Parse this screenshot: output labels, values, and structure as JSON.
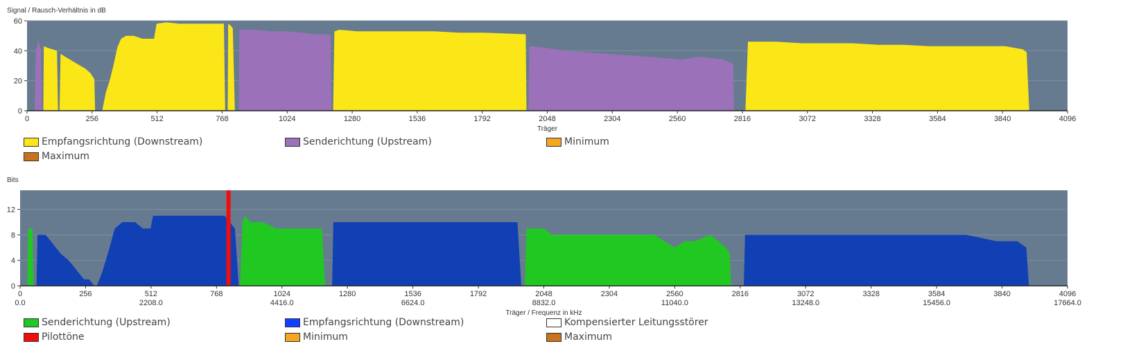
{
  "chart_data": [
    {
      "type": "area",
      "ylabel": "Signal / Rausch-Verhältnis in dB",
      "xlabel": "Träger",
      "xlim": [
        0,
        4096
      ],
      "ylim": [
        0,
        60
      ],
      "xticks": [
        "0",
        "256",
        "512",
        "768",
        "1024",
        "1280",
        "1536",
        "1792",
        "2048",
        "2304",
        "2560",
        "2816",
        "3072",
        "3328",
        "3584",
        "3840",
        "4096"
      ],
      "yticks": [
        "0",
        "20",
        "40",
        "60"
      ],
      "grid": true,
      "background": "#667b8f",
      "series": [
        {
          "name": "Empfangsrichtung (Downstream)",
          "color": "#fbe718",
          "segments": [
            [
              [
                64,
                0
              ],
              [
                66,
                43
              ],
              [
                80,
                42
              ],
              [
                100,
                41
              ],
              [
                118,
                40
              ],
              [
                122,
                0
              ]
            ],
            [
              [
                128,
                0
              ],
              [
                132,
                38
              ],
              [
                150,
                36
              ],
              [
                170,
                34
              ],
              [
                190,
                32
              ],
              [
                210,
                30
              ],
              [
                230,
                28
              ],
              [
                250,
                25
              ],
              [
                265,
                21
              ],
              [
                268,
                0
              ]
            ],
            [
              [
                296,
                0
              ],
              [
                310,
                12
              ],
              [
                325,
                20
              ],
              [
                340,
                30
              ],
              [
                355,
                42
              ],
              [
                370,
                48
              ],
              [
                390,
                50
              ],
              [
                420,
                50
              ],
              [
                455,
                48
              ],
              [
                500,
                48
              ],
              [
                510,
                58
              ],
              [
                550,
                59
              ],
              [
                600,
                58
              ],
              [
                650,
                58
              ],
              [
                700,
                58
              ],
              [
                750,
                58
              ],
              [
                775,
                58
              ],
              [
                780,
                0
              ]
            ],
            [
              [
                790,
                0
              ],
              [
                792,
                58
              ],
              [
                800,
                57
              ],
              [
                810,
                55
              ],
              [
                818,
                0
              ]
            ],
            [
              [
                1205,
                0
              ],
              [
                1210,
                53
              ],
              [
                1230,
                54
              ],
              [
                1300,
                53
              ],
              [
                1400,
                53
              ],
              [
                1500,
                53
              ],
              [
                1600,
                53
              ],
              [
                1700,
                52
              ],
              [
                1800,
                52
              ],
              [
                1963,
                51
              ],
              [
                1966,
                0
              ]
            ],
            [
              [
                2828,
                0
              ],
              [
                2838,
                46
              ],
              [
                2950,
                46
              ],
              [
                3050,
                45
              ],
              [
                3150,
                45
              ],
              [
                3250,
                45
              ],
              [
                3350,
                44
              ],
              [
                3450,
                44
              ],
              [
                3550,
                43
              ],
              [
                3650,
                43
              ],
              [
                3750,
                43
              ],
              [
                3850,
                43
              ],
              [
                3920,
                41
              ],
              [
                3935,
                39
              ],
              [
                3945,
                0
              ]
            ]
          ]
        },
        {
          "name": "Senderichtung (Upstream)",
          "color": "#9b72ba",
          "segments": [
            [
              [
                30,
                0
              ],
              [
                35,
                40
              ],
              [
                45,
                47
              ],
              [
                55,
                40
              ],
              [
                58,
                0
              ]
            ],
            [
              [
                834,
                0
              ],
              [
                836,
                54
              ],
              [
                900,
                54
              ],
              [
                960,
                53
              ],
              [
                1020,
                53
              ],
              [
                1080,
                52
              ],
              [
                1130,
                51
              ],
              [
                1180,
                51
              ],
              [
                1195,
                50
              ],
              [
                1198,
                0
              ]
            ],
            [
              [
                1974,
                0
              ],
              [
                1978,
                43
              ],
              [
                2040,
                42
              ],
              [
                2120,
                40
              ],
              [
                2200,
                39
              ],
              [
                2280,
                38
              ],
              [
                2360,
                37
              ],
              [
                2440,
                36
              ],
              [
                2520,
                35
              ],
              [
                2580,
                34
              ],
              [
                2640,
                36
              ],
              [
                2700,
                35
              ],
              [
                2740,
                34
              ],
              [
                2770,
                32
              ],
              [
                2780,
                31
              ],
              [
                2783,
                0
              ]
            ]
          ]
        },
        {
          "name": "Minimum",
          "color": "#f5a623",
          "segments": []
        },
        {
          "name": "Maximum",
          "color": "#c97320",
          "segments": []
        }
      ]
    },
    {
      "type": "area",
      "ylabel": "Bits",
      "xlabel": "Träger / Frequenz in kHz",
      "xlim": [
        0,
        4096
      ],
      "ylim": [
        0,
        15
      ],
      "xticks": [
        "0",
        "256",
        "512",
        "768",
        "1024",
        "1280",
        "1536",
        "1792",
        "2048",
        "2304",
        "2560",
        "2816",
        "3072",
        "3328",
        "3584",
        "3840",
        "4096"
      ],
      "xticks_freq": [
        "0.0",
        "2208.0",
        "4416.0",
        "6624.0",
        "8832.0",
        "11040.0",
        "13248.0",
        "15456.0",
        "17664.0"
      ],
      "yticks": [
        "0",
        "4",
        "8",
        "12"
      ],
      "grid": true,
      "background": "#667b8f",
      "series": [
        {
          "name": "Senderichtung (Upstream)",
          "color": "#22c822",
          "segments": [
            [
              [
                28,
                0
              ],
              [
                32,
                9
              ],
              [
                48,
                9
              ],
              [
                52,
                0
              ]
            ],
            [
              [
                860,
                0
              ],
              [
                870,
                10
              ],
              [
                880,
                11
              ],
              [
                900,
                10
              ],
              [
                950,
                10
              ],
              [
                1000,
                9
              ],
              [
                1050,
                9
              ],
              [
                1100,
                9
              ],
              [
                1180,
                9
              ],
              [
                1193,
                0
              ]
            ],
            [
              [
                1974,
                0
              ],
              [
                1980,
                9
              ],
              [
                2050,
                9
              ],
              [
                2080,
                8
              ],
              [
                2200,
                8
              ],
              [
                2300,
                8
              ],
              [
                2400,
                8
              ],
              [
                2480,
                8
              ],
              [
                2520,
                7
              ],
              [
                2560,
                6
              ],
              [
                2600,
                7
              ],
              [
                2640,
                7
              ],
              [
                2700,
                8
              ],
              [
                2730,
                7
              ],
              [
                2760,
                6
              ],
              [
                2775,
                5
              ],
              [
                2781,
                0
              ]
            ]
          ]
        },
        {
          "name": "Empfangsrichtung (Downstream)",
          "color": "#1140b4",
          "segments": [
            [
              [
                64,
                0
              ],
              [
                68,
                8
              ],
              [
                100,
                8
              ],
              [
                120,
                7
              ],
              [
                140,
                6
              ],
              [
                160,
                5
              ],
              [
                190,
                4
              ],
              [
                210,
                3
              ],
              [
                230,
                2
              ],
              [
                250,
                1
              ],
              [
                270,
                1
              ],
              [
                290,
                0
              ]
            ],
            [
              [
                300,
                0
              ],
              [
                320,
                2
              ],
              [
                350,
                6
              ],
              [
                370,
                9
              ],
              [
                400,
                10
              ],
              [
                450,
                10
              ],
              [
                480,
                9
              ],
              [
                510,
                9
              ],
              [
                520,
                11
              ],
              [
                600,
                11
              ],
              [
                700,
                11
              ],
              [
                800,
                11
              ],
              [
                820,
                10
              ],
              [
                840,
                9
              ],
              [
                855,
                0
              ]
            ],
            [
              [
                1220,
                0
              ],
              [
                1225,
                10
              ],
              [
                1300,
                10
              ],
              [
                1400,
                10
              ],
              [
                1500,
                10
              ],
              [
                1600,
                10
              ],
              [
                1700,
                10
              ],
              [
                1800,
                10
              ],
              [
                1945,
                10
              ],
              [
                1960,
                0
              ]
            ],
            [
              [
                2830,
                0
              ],
              [
                2835,
                8
              ],
              [
                2900,
                8
              ],
              [
                3000,
                8
              ],
              [
                3100,
                8
              ],
              [
                3200,
                8
              ],
              [
                3300,
                8
              ],
              [
                3400,
                8
              ],
              [
                3500,
                8
              ],
              [
                3600,
                8
              ],
              [
                3700,
                8
              ],
              [
                3820,
                7
              ],
              [
                3900,
                7
              ],
              [
                3935,
                6
              ],
              [
                3945,
                0
              ]
            ]
          ]
        },
        {
          "name": "Kompensierter Leitungsstörer",
          "color": "#ffffff",
          "segments": []
        },
        {
          "name": "Pilottöne",
          "color": "#f20d0d",
          "bars": [
            {
              "x": 815,
              "y": 15
            }
          ]
        },
        {
          "name": "Minimum",
          "color": "#f5a623",
          "segments": []
        },
        {
          "name": "Maximum",
          "color": "#c97320",
          "segments": []
        }
      ]
    }
  ]
}
